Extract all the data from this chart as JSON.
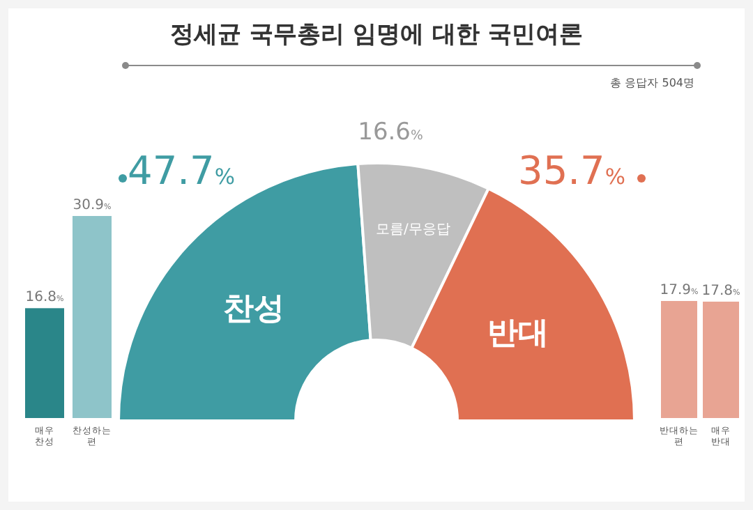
{
  "chart_data": [
    {
      "type": "donut",
      "title": "정세균 국무총리 임명에 대한 국민여론",
      "annotations": [
        "총 응답자 504명"
      ],
      "categories": [
        "찬성",
        "모름/무응답",
        "반대"
      ],
      "values": [
        47.7,
        16.6,
        35.7
      ],
      "colors": [
        "#3f9ca3",
        "#bfbfbf",
        "#e07052"
      ],
      "value_labels": [
        "47.7%",
        "16.6%",
        "35.7%"
      ]
    },
    {
      "type": "bar",
      "categories": [
        "매우 찬성",
        "찬성하는 편"
      ],
      "values": [
        16.8,
        30.9
      ],
      "colors": [
        "#2a8689",
        "#8ec4c9"
      ],
      "value_labels": [
        "16.8%",
        "30.9%"
      ]
    },
    {
      "type": "bar",
      "categories": [
        "반대하는 편",
        "매우 반대"
      ],
      "values": [
        17.9,
        17.8
      ],
      "colors": [
        "#e8a493",
        "#e8a493"
      ],
      "value_labels": [
        "17.9%",
        "17.8%"
      ]
    }
  ]
}
